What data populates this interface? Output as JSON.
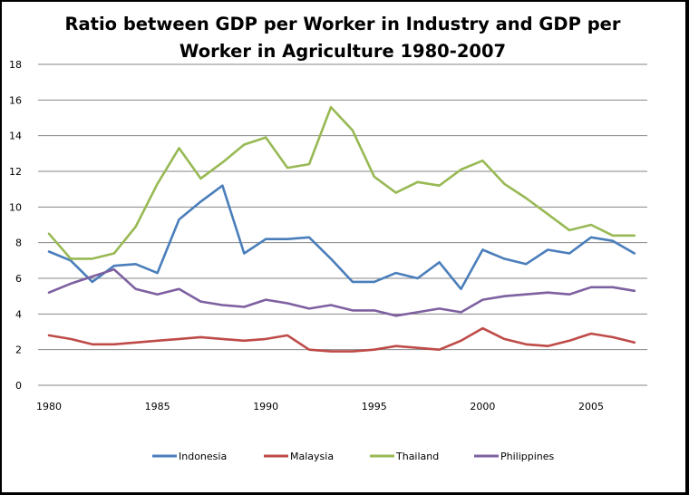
{
  "chart_data": {
    "type": "line",
    "title_lines": [
      "Ratio between GDP per Worker in Industry and GDP per",
      "Worker in Agriculture 1980-2007"
    ],
    "title": "Ratio between GDP per Worker in Industry and GDP per Worker in Agriculture 1980-2007",
    "xlabel": "",
    "ylabel": "",
    "x": [
      1980,
      1981,
      1982,
      1983,
      1984,
      1985,
      1986,
      1987,
      1988,
      1989,
      1990,
      1991,
      1992,
      1993,
      1994,
      1995,
      1996,
      1997,
      1998,
      1999,
      2000,
      2001,
      2002,
      2003,
      2004,
      2005,
      2006,
      2007
    ],
    "xticks": [
      "1980",
      "1985",
      "1990",
      "1995",
      "2000",
      "2005"
    ],
    "xtick_values": [
      1980,
      1985,
      1990,
      1995,
      2000,
      2005
    ],
    "yticks": [
      "0",
      "2",
      "4",
      "6",
      "8",
      "10",
      "12",
      "14",
      "16",
      "18"
    ],
    "ylim": [
      0,
      18
    ],
    "xlim": [
      1979.5,
      2008.5
    ],
    "grid": true,
    "legend": "bottom",
    "series": [
      {
        "name": "Indonesia",
        "color": "#4a7ebb",
        "values": [
          7.5,
          7.0,
          5.8,
          6.7,
          6.8,
          6.3,
          9.3,
          10.3,
          11.2,
          7.4,
          8.2,
          8.2,
          8.3,
          7.1,
          5.8,
          5.8,
          6.3,
          6.0,
          6.9,
          5.4,
          7.6,
          7.1,
          6.8,
          7.6,
          7.4,
          8.3,
          8.1,
          7.4
        ]
      },
      {
        "name": "Malaysia",
        "color": "#be4b48",
        "values": [
          2.8,
          2.6,
          2.3,
          2.3,
          2.4,
          2.5,
          2.6,
          2.7,
          2.6,
          2.5,
          2.6,
          2.8,
          2.0,
          1.9,
          1.9,
          2.0,
          2.2,
          2.1,
          2.0,
          2.5,
          3.2,
          2.6,
          2.3,
          2.2,
          2.5,
          2.9,
          2.7,
          2.4
        ]
      },
      {
        "name": "Thailand",
        "color": "#98b954",
        "values": [
          8.5,
          7.1,
          7.1,
          7.4,
          8.9,
          11.3,
          13.3,
          11.6,
          12.5,
          13.5,
          13.9,
          12.2,
          12.4,
          15.6,
          14.3,
          11.7,
          10.8,
          11.4,
          11.2,
          12.1,
          12.6,
          11.3,
          10.5,
          9.6,
          8.7,
          9.0,
          8.4,
          8.4
        ]
      },
      {
        "name": "Philippines",
        "color": "#7d60a0",
        "values": [
          5.2,
          5.7,
          6.1,
          6.5,
          5.4,
          5.1,
          5.4,
          4.7,
          4.5,
          4.4,
          4.8,
          4.6,
          4.3,
          4.5,
          4.2,
          4.2,
          3.9,
          4.1,
          4.3,
          4.1,
          4.8,
          5.0,
          5.1,
          5.2,
          5.1,
          5.5,
          5.5,
          5.3
        ]
      }
    ]
  }
}
